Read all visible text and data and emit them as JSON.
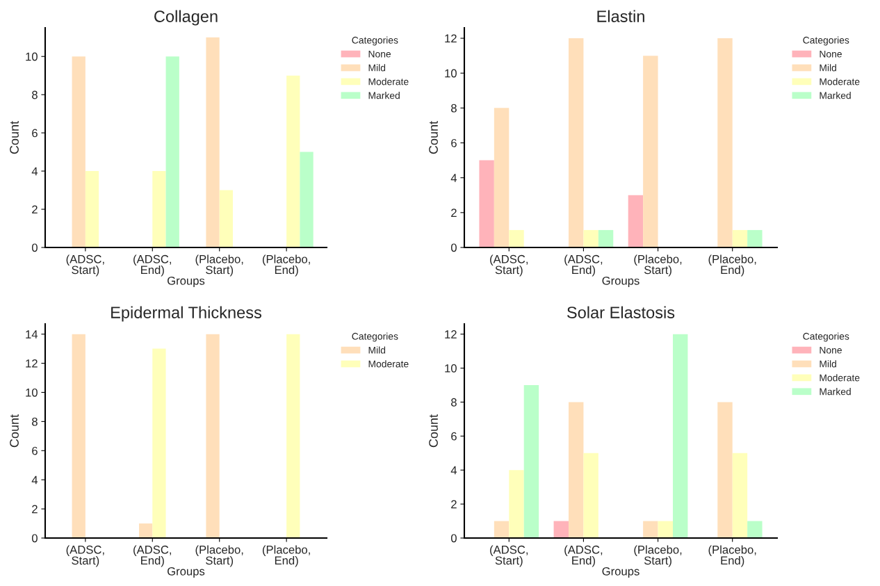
{
  "chart_data": [
    {
      "type": "bar",
      "title": "Collagen",
      "xlabel": "Groups",
      "ylabel": "Count",
      "legend_title": "Categories",
      "legend": "top right",
      "categories": [
        "(ADSC,\nStart)",
        "(ADSC,\nEnd)",
        "(Placebo,\nStart)",
        "(Placebo,\nEnd)"
      ],
      "ylim": [
        0,
        11.5
      ],
      "yticks": [
        0,
        2,
        4,
        6,
        8,
        10
      ],
      "grid": false,
      "series": [
        {
          "name": "None",
          "color": "#ffb3ba",
          "values": [
            0,
            0,
            0,
            0
          ]
        },
        {
          "name": "Mild",
          "color": "#ffdfba",
          "values": [
            10,
            0,
            11,
            0
          ]
        },
        {
          "name": "Moderate",
          "color": "#ffffba",
          "values": [
            4,
            4,
            3,
            9
          ]
        },
        {
          "name": "Marked",
          "color": "#baffc9",
          "values": [
            0,
            10,
            0,
            5
          ]
        }
      ]
    },
    {
      "type": "bar",
      "title": "Elastin",
      "xlabel": "Groups",
      "ylabel": "Count",
      "legend_title": "Categories",
      "legend": "top right",
      "categories": [
        "(ADSC,\nStart)",
        "(ADSC,\nEnd)",
        "(Placebo,\nStart)",
        "(Placebo,\nEnd)"
      ],
      "ylim": [
        0,
        12.6
      ],
      "yticks": [
        0,
        2,
        4,
        6,
        8,
        10,
        12
      ],
      "grid": false,
      "series": [
        {
          "name": "None",
          "color": "#ffb3ba",
          "values": [
            5,
            0,
            3,
            0
          ]
        },
        {
          "name": "Mild",
          "color": "#ffdfba",
          "values": [
            8,
            12,
            11,
            12
          ]
        },
        {
          "name": "Moderate",
          "color": "#ffffba",
          "values": [
            1,
            1,
            0,
            1
          ]
        },
        {
          "name": "Marked",
          "color": "#baffc9",
          "values": [
            0,
            1,
            0,
            1
          ]
        }
      ]
    },
    {
      "type": "bar",
      "title": "Epidermal Thickness",
      "xlabel": "Groups",
      "ylabel": "Count",
      "legend_title": "Categories",
      "legend": "top right",
      "categories": [
        "(ADSC,\nStart)",
        "(ADSC,\nEnd)",
        "(Placebo,\nStart)",
        "(Placebo,\nEnd)"
      ],
      "ylim": [
        0,
        14.7
      ],
      "yticks": [
        0,
        2,
        4,
        6,
        8,
        10,
        12,
        14
      ],
      "grid": false,
      "series": [
        {
          "name": "Mild",
          "color": "#ffdfba",
          "values": [
            14,
            1,
            14,
            0
          ]
        },
        {
          "name": "Moderate",
          "color": "#ffffba",
          "values": [
            0,
            13,
            0,
            14
          ]
        }
      ]
    },
    {
      "type": "bar",
      "title": "Solar Elastosis",
      "xlabel": "Groups",
      "ylabel": "Count",
      "legend_title": "Categories",
      "legend": "top right",
      "categories": [
        "(ADSC,\nStart)",
        "(ADSC,\nEnd)",
        "(Placebo,\nStart)",
        "(Placebo,\nEnd)"
      ],
      "ylim": [
        0,
        12.6
      ],
      "yticks": [
        0,
        2,
        4,
        6,
        8,
        10,
        12
      ],
      "grid": false,
      "series": [
        {
          "name": "None",
          "color": "#ffb3ba",
          "values": [
            0,
            1,
            0,
            0
          ]
        },
        {
          "name": "Mild",
          "color": "#ffdfba",
          "values": [
            1,
            8,
            1,
            8
          ]
        },
        {
          "name": "Moderate",
          "color": "#ffffba",
          "values": [
            4,
            5,
            1,
            5
          ]
        },
        {
          "name": "Marked",
          "color": "#baffc9",
          "values": [
            9,
            0,
            12,
            1
          ]
        }
      ]
    }
  ]
}
